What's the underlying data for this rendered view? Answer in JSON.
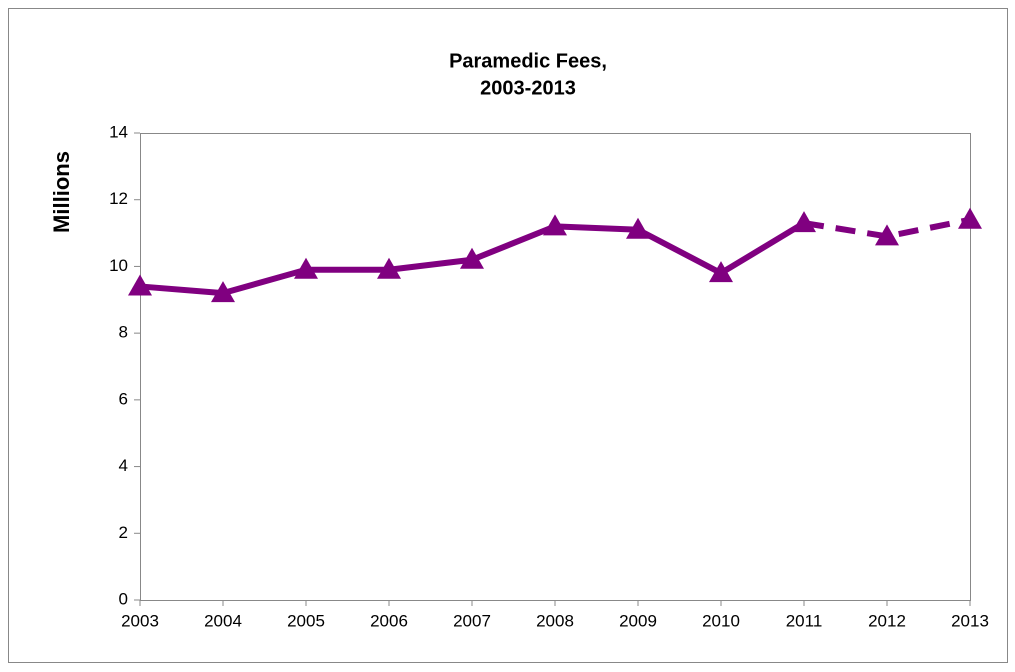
{
  "chart_data": {
    "type": "line",
    "title": [
      "Paramedic Fees,",
      "2003-2013"
    ],
    "y_label": "Millions",
    "categories": [
      "2003",
      "2004",
      "2005",
      "2006",
      "2007",
      "2008",
      "2009",
      "2010",
      "2011",
      "2012",
      "2013"
    ],
    "series": [
      {
        "color": "#800080",
        "values": [
          9.4,
          9.2,
          9.9,
          9.9,
          10.2,
          11.2,
          11.1,
          9.8,
          11.3,
          10.9,
          11.4
        ]
      }
    ],
    "dashed_from": "2011",
    "ylim": [
      0,
      14
    ],
    "yticks": [
      0,
      2,
      4,
      6,
      8,
      10,
      12,
      14
    ],
    "grid": false
  }
}
